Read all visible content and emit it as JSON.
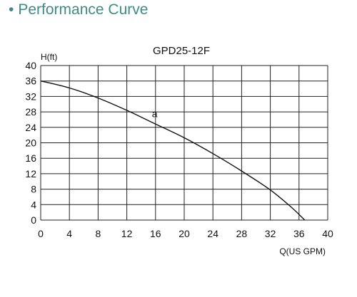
{
  "header": {
    "bullet": "•",
    "title": "Performance Curve"
  },
  "chart_data": {
    "type": "line",
    "title": "GPD25-12F",
    "xlabel": "Q(US GPM)",
    "ylabel": "H(ft)",
    "xlim": [
      0,
      40
    ],
    "ylim": [
      0,
      40
    ],
    "x_ticks": [
      0,
      4,
      8,
      12,
      16,
      20,
      24,
      28,
      32,
      36,
      40
    ],
    "y_ticks": [
      0,
      4,
      8,
      12,
      16,
      20,
      24,
      28,
      32,
      36,
      40
    ],
    "grid": true,
    "series": [
      {
        "name": "a",
        "x": [
          0,
          4,
          8,
          12,
          15.5,
          20,
          24,
          28,
          32,
          35,
          36.8
        ],
        "y": [
          36,
          34.2,
          31.6,
          28.4,
          25.3,
          21.3,
          17.2,
          12.7,
          7.8,
          3.2,
          0
        ]
      }
    ],
    "curve_label": {
      "text": "a",
      "x": 15.5,
      "y": 26.6
    },
    "colors": {
      "line": "#111111",
      "grid": "#222222"
    }
  }
}
